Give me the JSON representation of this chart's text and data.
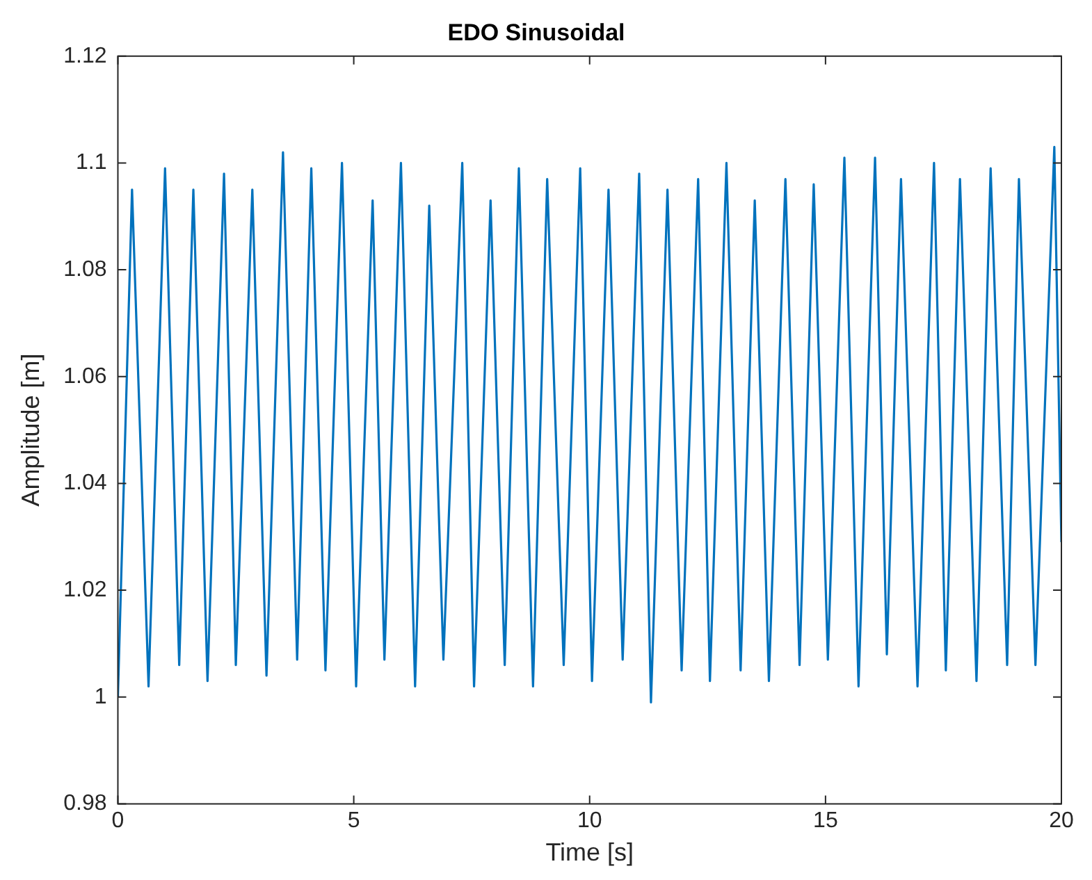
{
  "chart_data": {
    "type": "line",
    "title": "EDO Sinusoidal",
    "xlabel": "Time [s]",
    "ylabel": "Amplitude [m]",
    "xlim": [
      0,
      20
    ],
    "xticks": [
      0,
      5,
      10,
      15,
      20
    ],
    "ylim": [
      0.98,
      1.12
    ],
    "yticks": [
      0.98,
      1,
      1.02,
      1.04,
      1.06,
      1.08,
      1.1,
      1.12
    ],
    "grid": false,
    "legend": false,
    "marker": "none",
    "line_style": "solid",
    "series": [
      {
        "color": "#0072bd",
        "x": [
          0,
          0.3,
          0.65,
          1.0,
          1.3,
          1.6,
          1.9,
          2.25,
          2.5,
          2.85,
          3.15,
          3.5,
          3.8,
          4.1,
          4.4,
          4.75,
          5.05,
          5.4,
          5.65,
          6.0,
          6.3,
          6.6,
          6.9,
          7.3,
          7.55,
          7.9,
          8.2,
          8.5,
          8.8,
          9.1,
          9.45,
          9.8,
          10.05,
          10.4,
          10.7,
          11.05,
          11.3,
          11.65,
          11.95,
          12.3,
          12.55,
          12.9,
          13.2,
          13.5,
          13.8,
          14.15,
          14.45,
          14.75,
          15.05,
          15.4,
          15.7,
          16.05,
          16.3,
          16.6,
          16.95,
          17.3,
          17.55,
          17.85,
          18.2,
          18.5,
          18.85,
          19.1,
          19.45,
          19.85,
          20
        ],
        "values": [
          1.0,
          1.095,
          1.002,
          1.099,
          1.006,
          1.095,
          1.003,
          1.098,
          1.006,
          1.095,
          1.004,
          1.102,
          1.007,
          1.099,
          1.005,
          1.1,
          1.002,
          1.093,
          1.007,
          1.1,
          1.002,
          1.092,
          1.007,
          1.1,
          1.002,
          1.093,
          1.006,
          1.099,
          1.002,
          1.097,
          1.006,
          1.099,
          1.003,
          1.095,
          1.007,
          1.098,
          0.999,
          1.095,
          1.005,
          1.097,
          1.003,
          1.1,
          1.005,
          1.093,
          1.003,
          1.097,
          1.006,
          1.096,
          1.007,
          1.101,
          1.002,
          1.101,
          1.008,
          1.097,
          1.002,
          1.1,
          1.005,
          1.097,
          1.003,
          1.099,
          1.006,
          1.097,
          1.006,
          1.103,
          1.029
        ]
      }
    ]
  }
}
